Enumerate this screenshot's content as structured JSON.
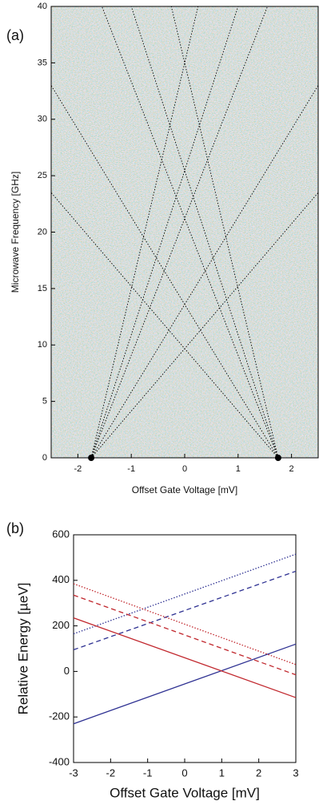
{
  "chart_data": [
    {
      "type": "line",
      "panel_label": "(a)",
      "xlabel": "Offset Gate Voltage [mV]",
      "ylabel": "Microwave Frequency [GHz]",
      "xlim": [
        -2.5,
        2.5
      ],
      "ylim": [
        0,
        40
      ],
      "xticks": [
        -2,
        -1,
        0,
        1,
        2
      ],
      "yticks": [
        0,
        5,
        10,
        15,
        20,
        25,
        30,
        35,
        40
      ],
      "background": "heatmap",
      "linestyle": "dotted",
      "color": "#000000",
      "series": [
        {
          "x": [
            -1.75,
            0.25
          ],
          "values": [
            0,
            40
          ]
        },
        {
          "x": [
            -1.75,
            1.0
          ],
          "values": [
            0,
            40
          ]
        },
        {
          "x": [
            -1.75,
            1.55
          ],
          "values": [
            0,
            40
          ]
        },
        {
          "x": [
            -1.75,
            2.5
          ],
          "values": [
            0,
            33
          ]
        },
        {
          "x": [
            -1.75,
            2.5
          ],
          "values": [
            0,
            23.5
          ]
        },
        {
          "x": [
            1.75,
            -0.25
          ],
          "values": [
            0,
            40
          ]
        },
        {
          "x": [
            1.75,
            -1.0
          ],
          "values": [
            0,
            40
          ]
        },
        {
          "x": [
            1.75,
            -1.55
          ],
          "values": [
            0,
            40
          ]
        },
        {
          "x": [
            1.75,
            -2.5
          ],
          "values": [
            0,
            33
          ]
        },
        {
          "x": [
            1.75,
            -2.5
          ],
          "values": [
            0,
            23.5
          ]
        }
      ],
      "points": {
        "x": [
          -1.75,
          1.75
        ],
        "values": [
          0,
          0
        ],
        "color": "#000000"
      }
    },
    {
      "type": "line",
      "panel_label": "(b)",
      "xlabel": "Offset Gate Voltage [mV]",
      "ylabel": "Relative Energy [µeV]",
      "xlim": [
        -3,
        3
      ],
      "ylim": [
        -400,
        600
      ],
      "xticks": [
        -3,
        -2,
        -1,
        0,
        1,
        2,
        3
      ],
      "yticks": [
        -400,
        -200,
        0,
        200,
        400,
        600
      ],
      "series": [
        {
          "color": "#2e3192",
          "linestyle": "solid",
          "x": [
            -3,
            3
          ],
          "values": [
            -230,
            120
          ]
        },
        {
          "color": "#2e3192",
          "linestyle": "dashed",
          "x": [
            -3,
            3
          ],
          "values": [
            95,
            440
          ]
        },
        {
          "color": "#2e3192",
          "linestyle": "dotted",
          "x": [
            -3,
            3
          ],
          "values": [
            165,
            515
          ]
        },
        {
          "color": "#c1272d",
          "linestyle": "solid",
          "x": [
            -3,
            3
          ],
          "values": [
            235,
            -115
          ]
        },
        {
          "color": "#c1272d",
          "linestyle": "dashed",
          "x": [
            -3,
            3
          ],
          "values": [
            335,
            -15
          ]
        },
        {
          "color": "#c1272d",
          "linestyle": "dotted",
          "x": [
            -3,
            3
          ],
          "values": [
            385,
            30
          ]
        }
      ]
    }
  ]
}
